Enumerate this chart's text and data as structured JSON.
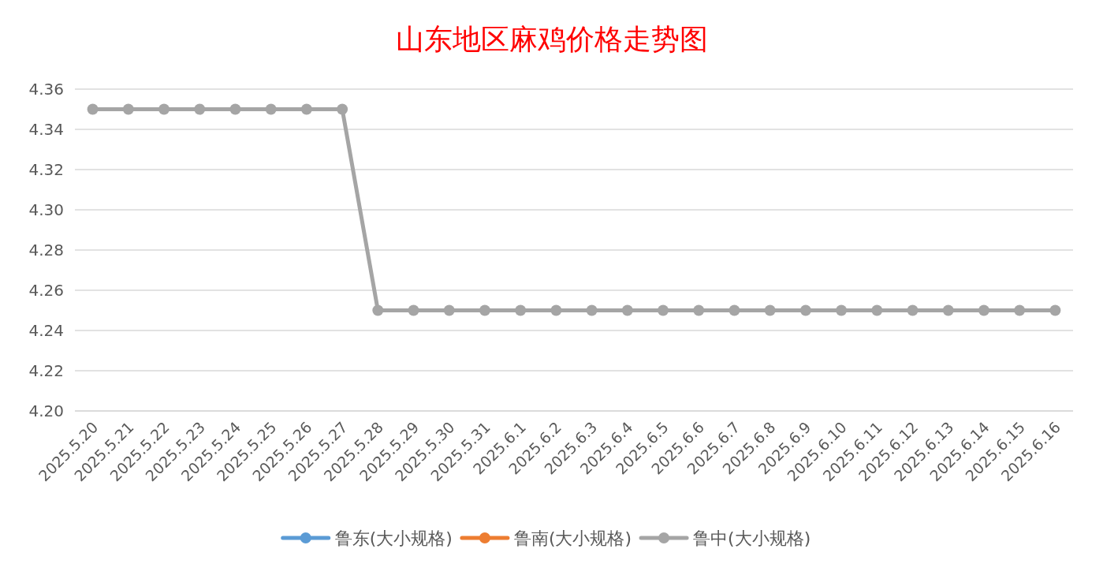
{
  "chart_data": {
    "type": "line",
    "title": "山东地区麻鸡价格走势图",
    "categories": [
      "2025.5.20",
      "2025.5.21",
      "2025.5.22",
      "2025.5.23",
      "2025.5.24",
      "2025.5.25",
      "2025.5.26",
      "2025.5.27",
      "2025.5.28",
      "2025.5.29",
      "2025.5.30",
      "2025.5.31",
      "2025.6.1",
      "2025.6.2",
      "2025.6.3",
      "2025.6.4",
      "2025.6.5",
      "2025.6.6",
      "2025.6.7",
      "2025.6.8",
      "2025.6.9",
      "2025.6.10",
      "2025.6.11",
      "2025.6.12",
      "2025.6.13",
      "2025.6.14",
      "2025.6.15",
      "2025.6.16"
    ],
    "series": [
      {
        "name": "鲁东(大小规格)",
        "color": "#5b9bd5",
        "values": [
          null,
          null,
          null,
          null,
          null,
          null,
          null,
          null,
          null,
          null,
          null,
          null,
          null,
          null,
          null,
          null,
          null,
          null,
          null,
          null,
          null,
          null,
          null,
          null,
          null,
          null,
          null,
          null
        ]
      },
      {
        "name": "鲁南(大小规格)",
        "color": "#ed7d31",
        "values": [
          null,
          null,
          null,
          null,
          null,
          null,
          null,
          null,
          null,
          null,
          null,
          null,
          null,
          null,
          null,
          null,
          null,
          null,
          null,
          null,
          null,
          null,
          null,
          null,
          null,
          null,
          null,
          null
        ]
      },
      {
        "name": "鲁中(大小规格)",
        "color": "#a5a5a5",
        "values": [
          4.35,
          4.35,
          4.35,
          4.35,
          4.35,
          4.35,
          4.35,
          4.35,
          4.25,
          4.25,
          4.25,
          4.25,
          4.25,
          4.25,
          4.25,
          4.25,
          4.25,
          4.25,
          4.25,
          4.25,
          4.25,
          4.25,
          4.25,
          4.25,
          4.25,
          4.25,
          4.25,
          4.25
        ]
      }
    ],
    "ylim": [
      4.2,
      4.36
    ],
    "yticks": [
      {
        "value": 4.2,
        "label": "4.20"
      },
      {
        "value": 4.22,
        "label": "4.22"
      },
      {
        "value": 4.24,
        "label": "4.24"
      },
      {
        "value": 4.26,
        "label": "4.26"
      },
      {
        "value": 4.28,
        "label": "4.28"
      },
      {
        "value": 4.3,
        "label": "4.30"
      },
      {
        "value": 4.32,
        "label": "4.32"
      },
      {
        "value": 4.34,
        "label": "4.34"
      },
      {
        "value": 4.36,
        "label": "4.36"
      }
    ],
    "grid": "y",
    "legend": "bottom",
    "marker": "circle",
    "line_style": "solid"
  }
}
